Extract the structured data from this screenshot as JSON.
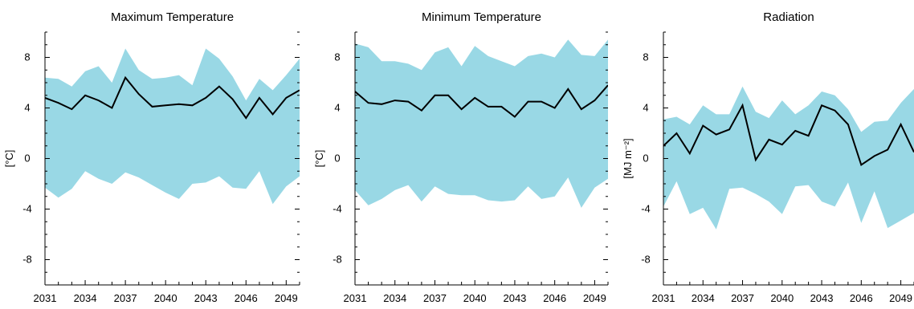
{
  "chart_data": [
    {
      "type": "area",
      "title": "Maximum Temperature",
      "xlabel": "",
      "ylabel": "[°C]",
      "ylim": [
        -10,
        10
      ],
      "x_ticks": [
        "2031",
        "2034",
        "2037",
        "2040",
        "2043",
        "2046",
        "2049"
      ],
      "y_ticks": [
        "-8",
        "-4",
        "0",
        "4",
        "8"
      ],
      "x": [
        2031,
        2032,
        2033,
        2034,
        2035,
        2036,
        2037,
        2038,
        2039,
        2040,
        2041,
        2042,
        2043,
        2044,
        2045,
        2046,
        2047,
        2048,
        2049,
        2050
      ],
      "series": [
        {
          "role": "upper",
          "values": [
            6.4,
            6.3,
            5.7,
            6.9,
            7.3,
            6.0,
            8.7,
            7.0,
            6.3,
            6.4,
            6.6,
            5.8,
            8.7,
            7.9,
            6.5,
            4.6,
            6.3,
            5.4,
            6.6,
            7.9
          ]
        },
        {
          "role": "lower",
          "values": [
            -2.3,
            -3.1,
            -2.4,
            -1.0,
            -1.6,
            -2.0,
            -1.1,
            -1.5,
            -2.1,
            -2.7,
            -3.2,
            -2.0,
            -1.9,
            -1.4,
            -2.3,
            -2.4,
            -1.0,
            -3.6,
            -2.2,
            -1.4
          ]
        },
        {
          "role": "mean",
          "values": [
            4.8,
            4.4,
            3.9,
            5.0,
            4.6,
            4.0,
            6.4,
            5.1,
            4.1,
            4.2,
            4.3,
            4.2,
            4.8,
            5.7,
            4.7,
            3.2,
            4.8,
            3.5,
            4.8,
            5.4
          ]
        }
      ],
      "band_color": "#99d8e5",
      "line_color": "#000000",
      "grid": false
    },
    {
      "type": "area",
      "title": "Minimum Temperature",
      "xlabel": "",
      "ylabel": "[°C]",
      "ylim": [
        -10,
        10
      ],
      "x_ticks": [
        "2031",
        "2034",
        "2037",
        "2040",
        "2043",
        "2046",
        "2049"
      ],
      "y_ticks": [
        "-8",
        "-4",
        "0",
        "4",
        "8"
      ],
      "x": [
        2031,
        2032,
        2033,
        2034,
        2035,
        2036,
        2037,
        2038,
        2039,
        2040,
        2041,
        2042,
        2043,
        2044,
        2045,
        2046,
        2047,
        2048,
        2049,
        2050
      ],
      "series": [
        {
          "role": "upper",
          "values": [
            9.1,
            8.8,
            7.7,
            7.7,
            7.5,
            7.0,
            8.4,
            8.8,
            7.3,
            8.9,
            8.1,
            7.7,
            7.3,
            8.1,
            8.3,
            8.0,
            9.4,
            8.2,
            8.1,
            9.4
          ]
        },
        {
          "role": "lower",
          "values": [
            -2.5,
            -3.7,
            -3.2,
            -2.5,
            -2.1,
            -3.4,
            -2.2,
            -2.8,
            -2.9,
            -2.9,
            -3.3,
            -3.4,
            -3.3,
            -2.2,
            -3.2,
            -3.0,
            -1.5,
            -3.9,
            -2.3,
            -1.6
          ]
        },
        {
          "role": "mean",
          "values": [
            5.3,
            4.4,
            4.3,
            4.6,
            4.5,
            3.8,
            5.0,
            5.0,
            3.9,
            4.8,
            4.1,
            4.1,
            3.3,
            4.5,
            4.5,
            4.0,
            5.5,
            3.9,
            4.6,
            5.8
          ]
        }
      ],
      "band_color": "#99d8e5",
      "line_color": "#000000",
      "grid": false
    },
    {
      "type": "area",
      "title": "Radiation",
      "xlabel": "",
      "ylabel": "[MJ m⁻²]",
      "ylim": [
        -10,
        10
      ],
      "x_ticks": [
        "2031",
        "2034",
        "2037",
        "2040",
        "2043",
        "2046",
        "2049"
      ],
      "y_ticks": [
        "-8",
        "-4",
        "0",
        "4",
        "8"
      ],
      "x": [
        2031,
        2032,
        2033,
        2034,
        2035,
        2036,
        2037,
        2038,
        2039,
        2040,
        2041,
        2042,
        2043,
        2044,
        2045,
        2046,
        2047,
        2048,
        2049,
        2050
      ],
      "series": [
        {
          "role": "upper",
          "values": [
            3.1,
            3.3,
            2.7,
            4.2,
            3.5,
            3.5,
            5.7,
            3.7,
            3.2,
            4.6,
            3.5,
            4.2,
            5.3,
            5.0,
            3.9,
            2.1,
            2.9,
            3.0,
            4.4,
            5.5
          ]
        },
        {
          "role": "lower",
          "values": [
            -3.8,
            -1.8,
            -4.4,
            -3.9,
            -5.6,
            -2.4,
            -2.3,
            -2.8,
            -3.4,
            -4.4,
            -2.2,
            -2.1,
            -3.4,
            -3.8,
            -1.9,
            -5.1,
            -2.6,
            -5.5,
            -4.9,
            -4.3
          ]
        },
        {
          "role": "mean",
          "values": [
            1.0,
            2.0,
            0.4,
            2.6,
            1.9,
            2.3,
            4.2,
            -0.1,
            1.5,
            1.1,
            2.2,
            1.8,
            4.2,
            3.8,
            2.7,
            -0.5,
            0.2,
            0.7,
            2.7,
            0.5
          ]
        }
      ],
      "band_color": "#99d8e5",
      "line_color": "#000000",
      "grid": false
    }
  ]
}
